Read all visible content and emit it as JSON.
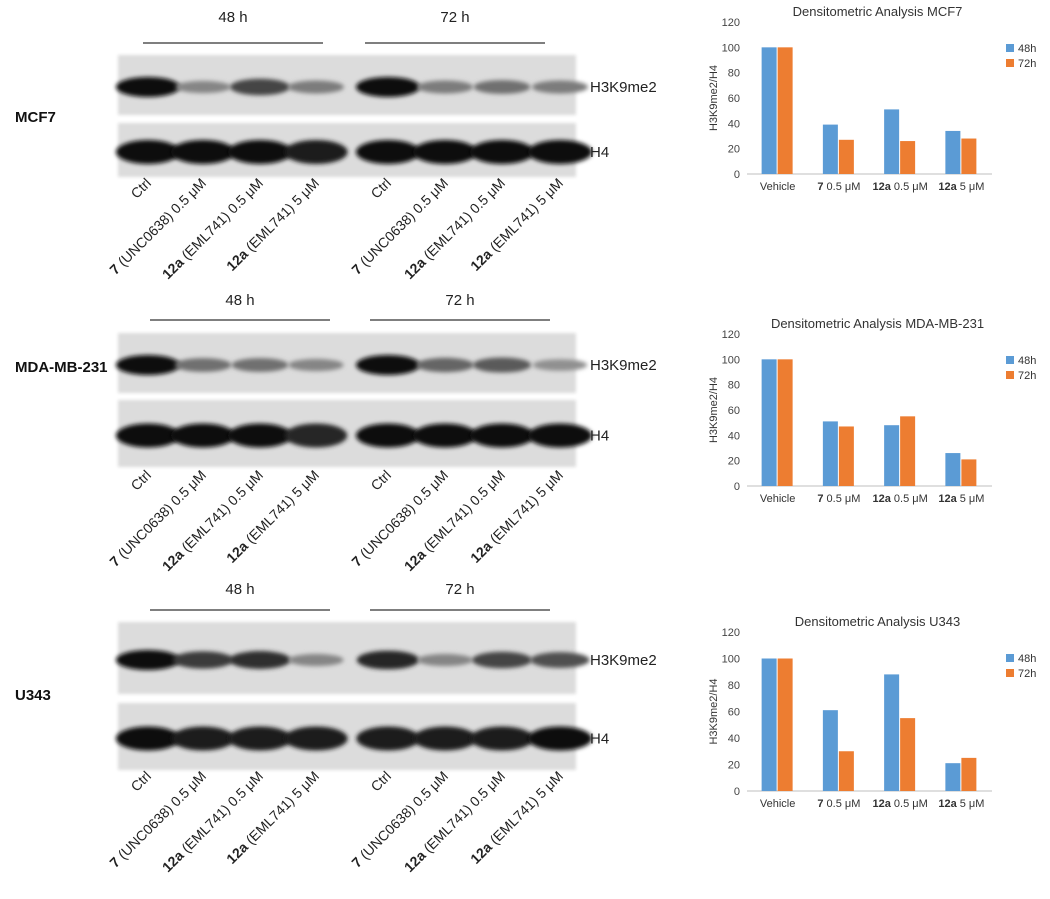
{
  "figure": {
    "panels": [
      {
        "cell_line": "MCF7",
        "timepoints": [
          "48 h",
          "72 h"
        ],
        "band_labels": [
          "H3K9me2",
          "H4"
        ],
        "lane_labels": [
          {
            "bold": "",
            "rest": "Ctrl"
          },
          {
            "bold": "7",
            "rest": " (UNC0638) 0.5 μM"
          },
          {
            "bold": "12a",
            "rest": " (EML741) 0.5 μM"
          },
          {
            "bold": "12a",
            "rest": " (EML741) 5 μM"
          },
          {
            "bold": "",
            "rest": "Ctrl"
          },
          {
            "bold": "7",
            "rest": " (UNC0638) 0.5 μM"
          },
          {
            "bold": "12a",
            "rest": " (EML741) 0.5 μM"
          },
          {
            "bold": "12a",
            "rest": " (EML741) 5 μM"
          }
        ],
        "band_intensity": {
          "H3K9me2": [
            1.0,
            0.45,
            0.75,
            0.5,
            1.0,
            0.5,
            0.55,
            0.5
          ],
          "H4": [
            1.0,
            1.0,
            1.0,
            0.95,
            1.0,
            1.0,
            1.0,
            1.0
          ]
        }
      },
      {
        "cell_line": "MDA-MB-231",
        "timepoints": [
          "48 h",
          "72 h"
        ],
        "band_labels": [
          "H3K9me2",
          "H4"
        ],
        "lane_labels": [
          {
            "bold": "",
            "rest": "Ctrl"
          },
          {
            "bold": "7",
            "rest": " (UNC0638) 0.5 μM"
          },
          {
            "bold": "12a",
            "rest": " (EML741) 0.5 μM"
          },
          {
            "bold": "12a",
            "rest": " (EML741) 5 μM"
          },
          {
            "bold": "",
            "rest": "Ctrl"
          },
          {
            "bold": "7",
            "rest": " (UNC0638) 0.5 μM"
          },
          {
            "bold": "12a",
            "rest": " (EML741) 0.5 μM"
          },
          {
            "bold": "12a",
            "rest": " (EML741) 5 μM"
          }
        ],
        "band_intensity": {
          "H3K9me2": [
            1.0,
            0.55,
            0.55,
            0.45,
            1.0,
            0.6,
            0.65,
            0.4
          ],
          "H4": [
            1.0,
            1.0,
            1.0,
            0.9,
            1.0,
            1.0,
            1.0,
            1.0
          ]
        }
      },
      {
        "cell_line": "U343",
        "timepoints": [
          "48 h",
          "72 h"
        ],
        "band_labels": [
          "H3K9me2",
          "H4"
        ],
        "lane_labels": [
          {
            "bold": "",
            "rest": "Ctrl"
          },
          {
            "bold": "7",
            "rest": " (UNC0638) 0.5 μM"
          },
          {
            "bold": "12a",
            "rest": " (EML741) 0.5 μM"
          },
          {
            "bold": "12a",
            "rest": " (EML741) 5 μM"
          },
          {
            "bold": "",
            "rest": "Ctrl"
          },
          {
            "bold": "7",
            "rest": " (UNC0638) 0.5 μM"
          },
          {
            "bold": "12a",
            "rest": " (EML741) 0.5 μM"
          },
          {
            "bold": "12a",
            "rest": " (EML741) 5 μM"
          }
        ],
        "band_intensity": {
          "H3K9me2": [
            1.0,
            0.8,
            0.85,
            0.45,
            0.9,
            0.45,
            0.75,
            0.7
          ],
          "H4": [
            1.0,
            0.95,
            0.95,
            0.95,
            0.95,
            0.95,
            0.95,
            1.0
          ]
        }
      }
    ]
  },
  "chart_data": [
    {
      "type": "bar",
      "title": "Densitometric Analysis MCF7",
      "ylabel": "H3K9me2/H4",
      "xlabel": "",
      "ylim": [
        0,
        120
      ],
      "yticks": [
        0,
        20,
        40,
        60,
        80,
        100,
        120
      ],
      "categories": [
        {
          "bold": "",
          "rest": "Vehicle"
        },
        {
          "bold": "7",
          "rest": " 0.5 μM"
        },
        {
          "bold": "12a",
          "rest": " 0.5 μM"
        },
        {
          "bold": "12a",
          "rest": " 5 μM"
        }
      ],
      "series": [
        {
          "name": "48h",
          "color": "#5b9bd5",
          "values": [
            100,
            39,
            51,
            34
          ]
        },
        {
          "name": "72h",
          "color": "#ed7d31",
          "values": [
            100,
            27,
            26,
            28
          ]
        }
      ],
      "grid": false,
      "legend": "right"
    },
    {
      "type": "bar",
      "title": "Densitometric Analysis MDA-MB-231",
      "ylabel": "H3K9me2/H4",
      "xlabel": "",
      "ylim": [
        0,
        120
      ],
      "yticks": [
        0,
        20,
        40,
        60,
        80,
        100,
        120
      ],
      "categories": [
        {
          "bold": "",
          "rest": "Vehicle"
        },
        {
          "bold": "7",
          "rest": " 0.5 μM"
        },
        {
          "bold": "12a",
          "rest": " 0.5 μM"
        },
        {
          "bold": "12a",
          "rest": " 5 μM"
        }
      ],
      "series": [
        {
          "name": "48h",
          "color": "#5b9bd5",
          "values": [
            100,
            51,
            48,
            26
          ]
        },
        {
          "name": "72h",
          "color": "#ed7d31",
          "values": [
            100,
            47,
            55,
            21
          ]
        }
      ],
      "grid": false,
      "legend": "right"
    },
    {
      "type": "bar",
      "title": "Densitometric Analysis U343",
      "ylabel": "H3K9me2/H4",
      "xlabel": "",
      "ylim": [
        0,
        120
      ],
      "yticks": [
        0,
        20,
        40,
        60,
        80,
        100,
        120
      ],
      "categories": [
        {
          "bold": "",
          "rest": "Vehicle"
        },
        {
          "bold": "7",
          "rest": " 0.5 μM"
        },
        {
          "bold": "12a",
          "rest": " 0.5 μM"
        },
        {
          "bold": "12a",
          "rest": " 5 μM"
        }
      ],
      "series": [
        {
          "name": "48h",
          "color": "#5b9bd5",
          "values": [
            100,
            61,
            88,
            21
          ]
        },
        {
          "name": "72h",
          "color": "#ed7d31",
          "values": [
            100,
            30,
            55,
            25
          ]
        }
      ],
      "grid": false,
      "legend": "right"
    }
  ]
}
